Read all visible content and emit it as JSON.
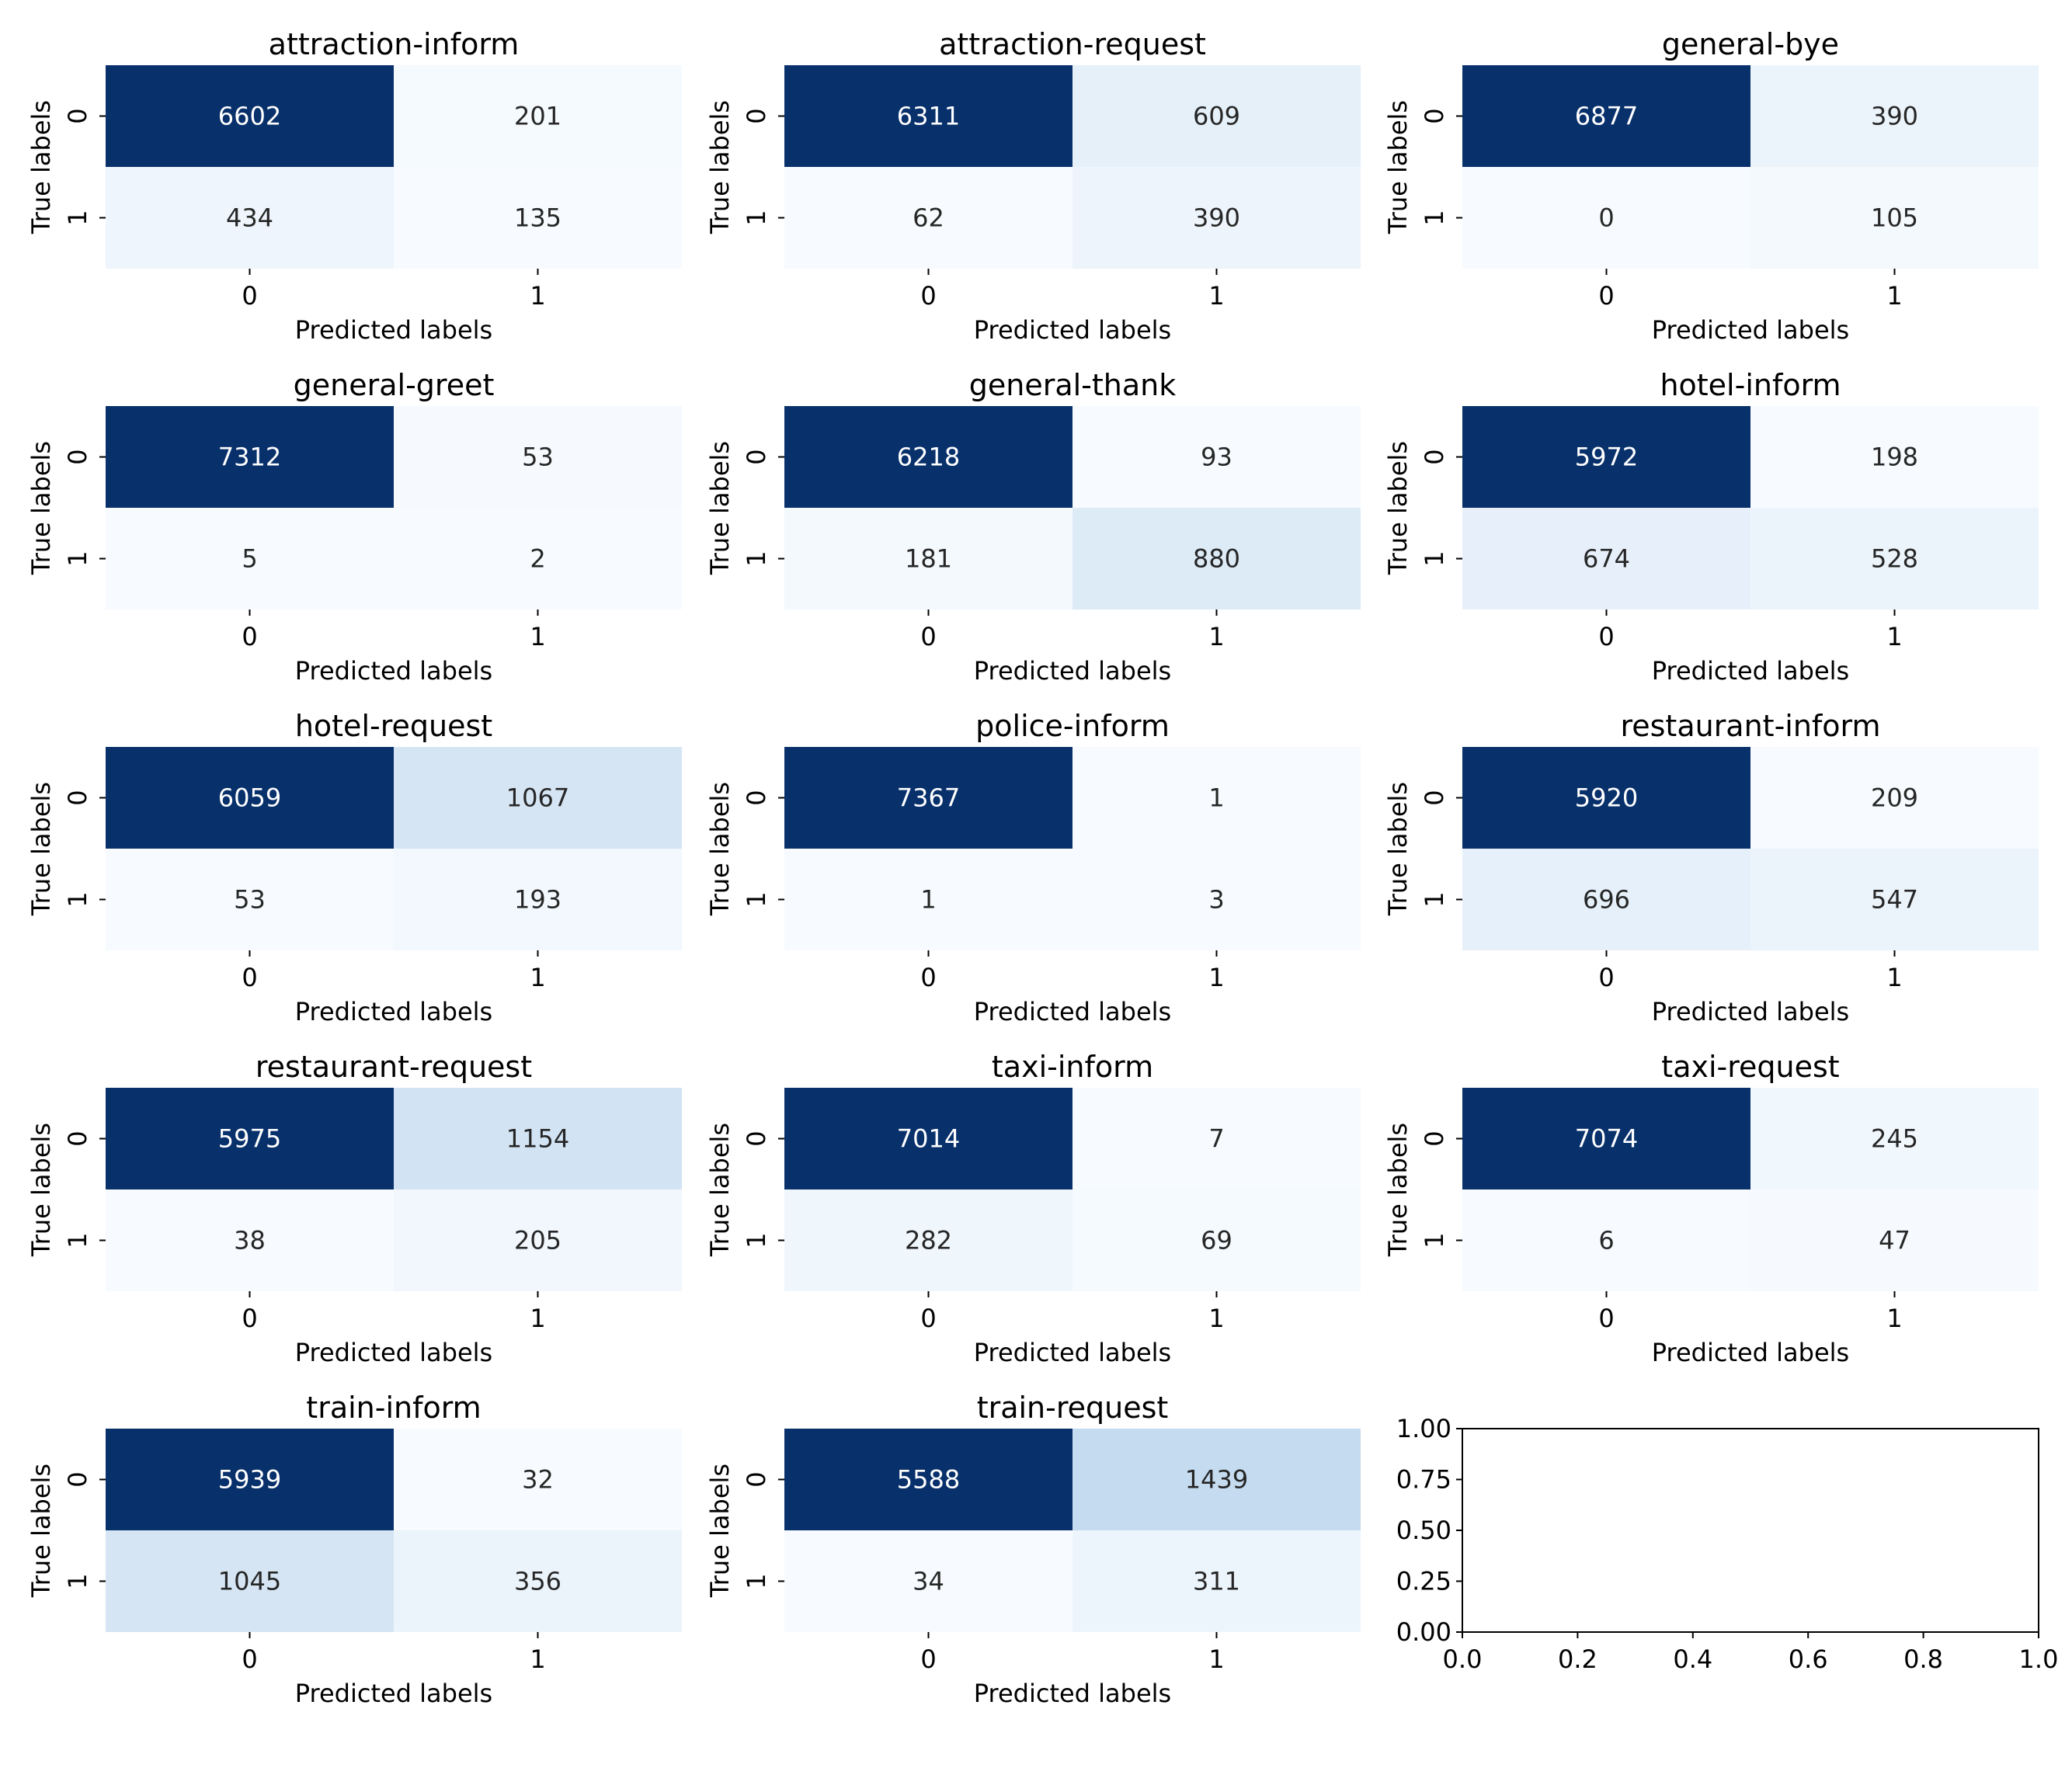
{
  "chart_data": {
    "type": "heatmap",
    "colormap": "Blues",
    "layout": {
      "rows": 5,
      "columns": 3
    },
    "panels": [
      {
        "title": "attraction-inform",
        "matrix": [
          [
            6602,
            201
          ],
          [
            434,
            135
          ]
        ]
      },
      {
        "title": "attraction-request",
        "matrix": [
          [
            6311,
            609
          ],
          [
            62,
            390
          ]
        ]
      },
      {
        "title": "general-bye",
        "matrix": [
          [
            6877,
            390
          ],
          [
            0,
            105
          ]
        ]
      },
      {
        "title": "general-greet",
        "matrix": [
          [
            7312,
            53
          ],
          [
            5,
            2
          ]
        ]
      },
      {
        "title": "general-thank",
        "matrix": [
          [
            6218,
            93
          ],
          [
            181,
            880
          ]
        ]
      },
      {
        "title": "hotel-inform",
        "matrix": [
          [
            5972,
            198
          ],
          [
            674,
            528
          ]
        ]
      },
      {
        "title": "hotel-request",
        "matrix": [
          [
            6059,
            1067
          ],
          [
            53,
            193
          ]
        ]
      },
      {
        "title": "police-inform",
        "matrix": [
          [
            7367,
            1
          ],
          [
            1,
            3
          ]
        ]
      },
      {
        "title": "restaurant-inform",
        "matrix": [
          [
            5920,
            209
          ],
          [
            696,
            547
          ]
        ]
      },
      {
        "title": "restaurant-request",
        "matrix": [
          [
            5975,
            1154
          ],
          [
            38,
            205
          ]
        ]
      },
      {
        "title": "taxi-inform",
        "matrix": [
          [
            7014,
            7
          ],
          [
            282,
            69
          ]
        ]
      },
      {
        "title": "taxi-request",
        "matrix": [
          [
            7074,
            245
          ],
          [
            6,
            47
          ]
        ]
      },
      {
        "title": "train-inform",
        "matrix": [
          [
            5939,
            32
          ],
          [
            1045,
            356
          ]
        ]
      },
      {
        "title": "train-request",
        "matrix": [
          [
            5588,
            1439
          ],
          [
            34,
            311
          ]
        ]
      }
    ],
    "xlabel": "Predicted labels",
    "ylabel": "True labels",
    "x_tick_labels": [
      "0",
      "1"
    ],
    "y_tick_labels": [
      "0",
      "1"
    ],
    "empty_panel": {
      "xlim": [
        0.0,
        1.0
      ],
      "ylim": [
        0.0,
        1.0
      ],
      "x_ticks": [
        "0.0",
        "0.2",
        "0.4",
        "0.6",
        "0.8",
        "1.0"
      ],
      "y_ticks": [
        "0.00",
        "0.25",
        "0.50",
        "0.75",
        "1.00"
      ]
    }
  },
  "colors": {
    "cmap_light": "#f7fbff",
    "cmap_stops": [
      "#f7fbff",
      "#deebf7",
      "#c6dbef",
      "#9ecae1",
      "#6baed6",
      "#4292c6",
      "#2171b5",
      "#08519c",
      "#08306b"
    ],
    "text_dark": "#262626",
    "text_light": "#ffffff",
    "axis": "#000000"
  }
}
